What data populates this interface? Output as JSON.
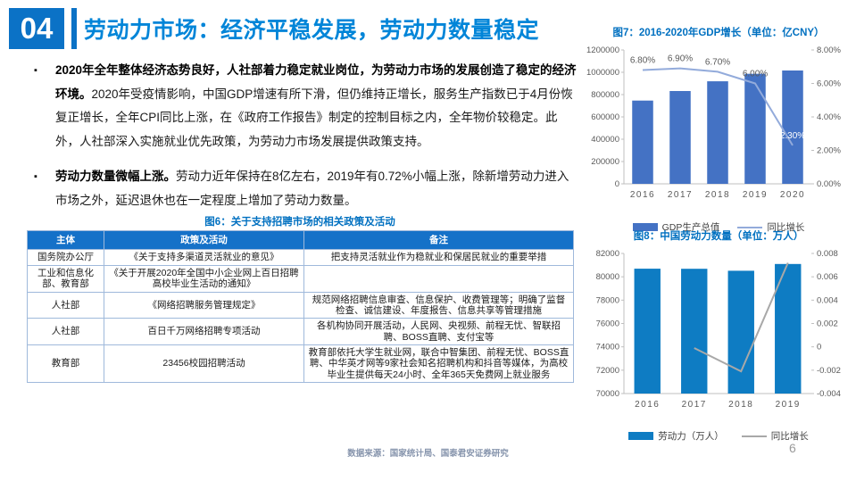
{
  "header": {
    "number": "04",
    "title": "劳动力市场：经济平稳发展，劳动力数量稳定"
  },
  "bullets": [
    {
      "bold": "2020年全年整体经济态势良好，人社部着力稳定就业岗位，为劳动力市场的发展创造了稳定的经济环境。",
      "text": "2020年受疫情影响，中国GDP增速有所下滑，但仍维持正增长，服务生产指数已于4月份恢复正增长，全年CPI同比上涨，在《政府工作报告》制定的控制目标之内，全年物价较稳定。此外，人社部深入实施就业优先政策，为劳动力市场发展提供政策支持。"
    },
    {
      "bold": "劳动力数量微幅上涨。",
      "text": "劳动力近年保持在8亿左右，2019年有0.72%小幅上涨，除新增劳动力进入市场之外，延迟退休也在一定程度上增加了劳动力数量。"
    }
  ],
  "table": {
    "caption": "图6：关于支持招聘市场的相关政策及活动",
    "headers": [
      "主体",
      "政策及活动",
      "备注"
    ],
    "rows": [
      [
        "国务院办公厅",
        "《关于支持多渠道灵活就业的意见》",
        "把支持灵活就业作为稳就业和保居民就业的重要举措"
      ],
      [
        "工业和信息化部、教育部",
        "《关于开展2020年全国中小企业网上百日招聘高校毕业生活动的通知》",
        ""
      ],
      [
        "人社部",
        "《网络招聘服务管理规定》",
        "规范网络招聘信息审查、信息保护、收费管理等；明确了监督检查、诚信建设、年度报告、信息共享等管理措施"
      ],
      [
        "人社部",
        "百日千万网络招聘专项活动",
        "各机构协同开展活动，人民网、央视频、前程无忧、智联招聘、BOSS直聘、支付宝等"
      ],
      [
        "教育部",
        "23456校园招聘活动",
        "教育部依托大学生就业网，联合中智集团、前程无忧、BOSS直聘、中华英才网等9家社会知名招聘机构和抖音等媒体，为高校毕业生提供每天24小时、全年365天免费网上就业服务"
      ]
    ]
  },
  "chart_data": [
    {
      "type": "bar+line",
      "title": "图7：2016-2020年GDP增长（单位：亿CNY）",
      "categories": [
        "2016",
        "2017",
        "2018",
        "2019",
        "2020"
      ],
      "series": [
        {
          "name": "GDP生产总值",
          "type": "bar",
          "axis": "left",
          "values": [
            746395,
            832036,
            919281,
            986515,
            1015986
          ],
          "color": "#4472C4"
        },
        {
          "name": "同比增长",
          "type": "line",
          "axis": "right",
          "values": [
            0.068,
            0.069,
            0.067,
            0.06,
            0.023
          ],
          "color": "#93ABDB",
          "point_labels": [
            "6.80%",
            "6.90%",
            "6.70%",
            "6.00%",
            "2.30%"
          ],
          "label_colors": [
            "#595959",
            "#595959",
            "#595959",
            "#595959",
            "#FFFFFF"
          ]
        }
      ],
      "left_axis": {
        "min": 0,
        "max": 1200000,
        "ticks": [
          "1200000",
          "1000000",
          "800000",
          "600000",
          "400000",
          "200000",
          "0"
        ]
      },
      "right_axis": {
        "min": 0,
        "max": 0.08,
        "ticks": [
          "8.00%",
          "6.00%",
          "4.00%",
          "2.00%",
          "0.00%"
        ]
      },
      "legend_position": "bottom",
      "grid": false
    },
    {
      "type": "bar+line",
      "title": "图8：中国劳动力数量（单位：万人）",
      "categories": [
        "2016",
        "2017",
        "2018",
        "2019"
      ],
      "series": [
        {
          "name": "劳动力（万人）",
          "type": "bar",
          "axis": "left",
          "values": [
            80694,
            80686,
            80517,
            81097
          ],
          "color": "#0E7CC3"
        },
        {
          "name": "同比增长",
          "type": "line",
          "axis": "right",
          "values": [
            null,
            -0.0001,
            -0.0021,
            0.0072
          ],
          "color": "#A8A8A8"
        }
      ],
      "left_axis": {
        "min": 70000,
        "max": 82000,
        "ticks": [
          "82000",
          "80000",
          "78000",
          "76000",
          "74000",
          "72000",
          "70000"
        ]
      },
      "right_axis": {
        "min": -0.004,
        "max": 0.008,
        "ticks": [
          "0.008",
          "0.006",
          "0.004",
          "0.002",
          "0",
          "-0.002",
          "-0.004"
        ]
      },
      "legend_position": "bottom",
      "grid": false
    }
  ],
  "footer": {
    "source": "数据来源：国家统计局、国泰君安证券研究",
    "page": "6"
  },
  "colors": {
    "accent_blue": "#0B72C6",
    "title_blue": "#0085D8",
    "caption_blue": "#0070C0",
    "table_header_blue": "#1571C8",
    "gdp_bar": "#4472C4",
    "gdp_line": "#93ABDB",
    "labor_bar": "#0E7CC3",
    "labor_line": "#A8A8A8",
    "axis_text": "#595959"
  }
}
